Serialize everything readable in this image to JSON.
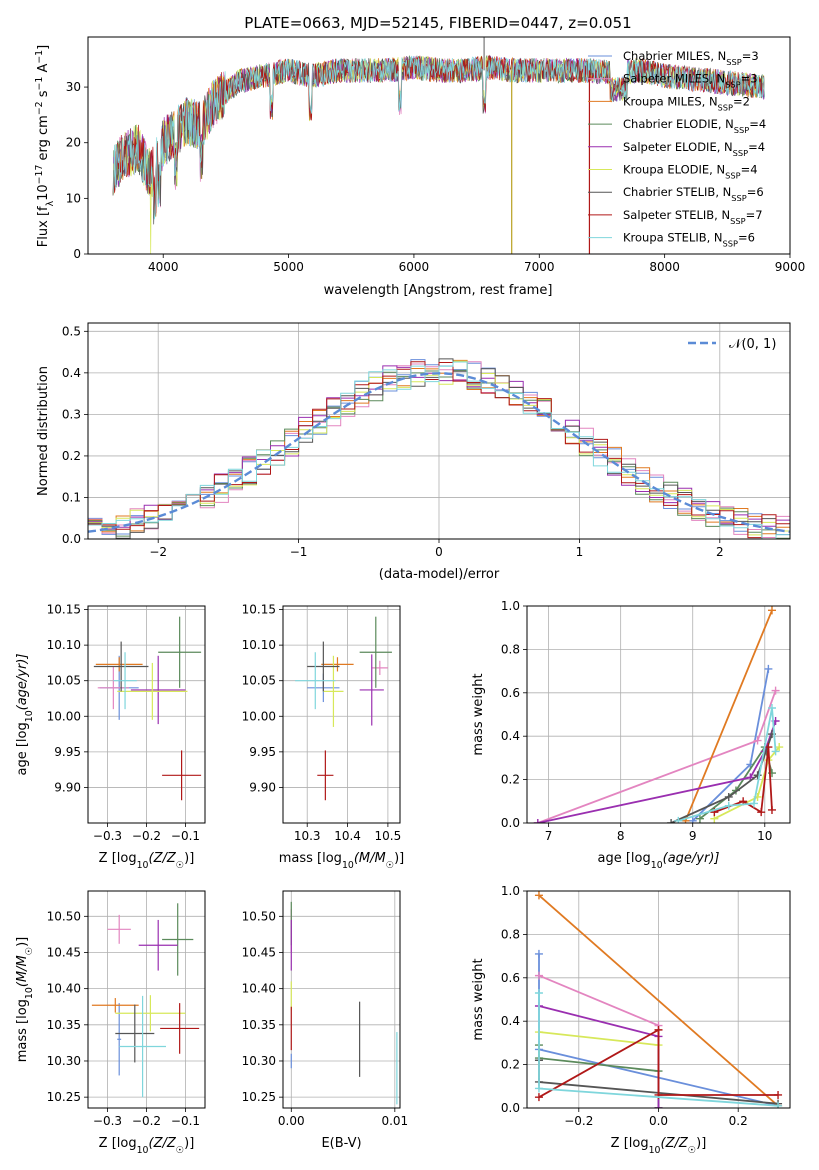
{
  "colors": {
    "chabrier_miles": "#6a8fdb",
    "salpeter_miles": "#e385c0",
    "kroupa_miles": "#e07a22",
    "chabrier_elodie": "#5b8a5b",
    "salpeter_elodie": "#9a2fb0",
    "kroupa_elodie": "#d7e85a",
    "chabrier_stelib": "#555555",
    "salpeter_stelib": "#b01818",
    "kroupa_stelib": "#7fd6dc",
    "normal_curve": "#5b8bd6",
    "grid": "#b0b0b0"
  },
  "chart_data": [
    {
      "type": "line",
      "title": "PLATE=0663, MJD=52145, FIBERID=0447, z=0.051",
      "xlabel": "wavelength [Angstrom, rest frame]",
      "ylabel_main": "Flux [f",
      "ylabel_sub": "λ",
      "ylabel_rest": "10",
      "ylabel_exp": "−17",
      "ylabel_unit": "erg cm",
      "ylabel_unit_exp": "−2",
      "ylabel_s": "s",
      "ylabel_s_exp": "−1",
      "ylabel_A": "A",
      "ylabel_A_exp": "−1",
      "ylabel_close": "]",
      "xlim": [
        3400,
        9000
      ],
      "ylim": [
        0,
        39
      ],
      "xticks": [
        "4000",
        "5000",
        "6000",
        "7000",
        "8000",
        "9000"
      ],
      "yticks": [
        "0",
        "10",
        "20",
        "30"
      ],
      "grid": false,
      "legend": [
        {
          "label": "Chabrier MILES, N",
          "sub": "SSP",
          "val": "=3"
        },
        {
          "label": "Salpeter MILES, N",
          "sub": "SSP",
          "val": "=3"
        },
        {
          "label": "Kroupa MILES, N",
          "sub": "SSP",
          "val": "=2"
        },
        {
          "label": "Chabrier ELODIE, N",
          "sub": "SSP",
          "val": "=4"
        },
        {
          "label": "Salpeter ELODIE, N",
          "sub": "SSP",
          "val": "=4"
        },
        {
          "label": "Kroupa ELODIE, N",
          "sub": "SSP",
          "val": "=4"
        },
        {
          "label": "Chabrier STELIB, N",
          "sub": "SSP",
          "val": "=6"
        },
        {
          "label": "Salpeter STELIB, N",
          "sub": "SSP",
          "val": "=7"
        },
        {
          "label": "Kroupa STELIB, N",
          "sub": "SSP",
          "val": "=6"
        }
      ],
      "legend_loc": "right",
      "continuum_x": [
        3600,
        3700,
        3800,
        3900,
        4000,
        4100,
        4200,
        4300,
        4400,
        4500,
        4600,
        4800,
        5000,
        5200,
        5400,
        5600,
        5800,
        6000,
        6200,
        6400,
        6600,
        6800,
        7000,
        7200,
        7400,
        7600,
        7800,
        8000,
        8200,
        8400,
        8600,
        8800
      ],
      "continuum_y": [
        15,
        18,
        19,
        14,
        20,
        22,
        24,
        23,
        27,
        29,
        31,
        32,
        33,
        32,
        33,
        33,
        33,
        33.5,
        33,
        33,
        33.5,
        33,
        33,
        33,
        33,
        32.5,
        33,
        32,
        31.5,
        31,
        30.5,
        30
      ]
    },
    {
      "type": "histogram",
      "xlabel": "(data-model)/error",
      "ylabel": "Normed distribution",
      "xlim": [
        -2.5,
        2.5
      ],
      "ylim": [
        0,
        0.52
      ],
      "xticks": [
        "−2",
        "−1",
        "0",
        "1",
        "2"
      ],
      "yticks": [
        "0.0",
        "0.1",
        "0.2",
        "0.3",
        "0.4",
        "0.5"
      ],
      "grid": true,
      "legend": [
        {
          "label": "𝒩(0, 1)"
        }
      ],
      "legend_loc": "top-right",
      "bin_width": 0.1
    },
    {
      "type": "scatter",
      "xlabel": "Z [log",
      "xlabel_sub": "10",
      "xlabel_rest": "(Z/Z",
      "xlabel_sub2": "☉",
      "xlabel_close": ")]",
      "ylabel": "age  [log",
      "ylabel_sub": "10",
      "ylabel_rest": "(age/yr)]",
      "xlim": [
        -0.35,
        -0.05
      ],
      "ylim": [
        9.85,
        10.155
      ],
      "xticks": [
        "−0.3",
        "−0.2",
        "−0.1"
      ],
      "yticks": [
        "9.90",
        "9.95",
        "10.00",
        "10.05",
        "10.10",
        "10.15"
      ],
      "points": [
        {
          "series": "chabrier_miles",
          "x": -0.27,
          "y": 10.04,
          "xerr": 0.05,
          "yerr": 0.045
        },
        {
          "series": "salpeter_miles",
          "x": -0.285,
          "y": 10.04,
          "xerr": 0.04,
          "yerr": 0.03
        },
        {
          "series": "kroupa_miles",
          "x": -0.27,
          "y": 10.073,
          "xerr": 0.06,
          "yerr": 0.01
        },
        {
          "series": "chabrier_elodie",
          "x": -0.115,
          "y": 10.09,
          "xerr": 0.055,
          "yerr": 0.05
        },
        {
          "series": "salpeter_elodie",
          "x": -0.17,
          "y": 10.037,
          "xerr": 0.07,
          "yerr": 0.048
        },
        {
          "series": "kroupa_elodie",
          "x": -0.185,
          "y": 10.035,
          "xerr": 0.09,
          "yerr": 0.04
        },
        {
          "series": "chabrier_stelib",
          "x": -0.265,
          "y": 10.07,
          "xerr": 0.07,
          "yerr": 0.035
        },
        {
          "series": "salpeter_stelib",
          "x": -0.11,
          "y": 9.917,
          "xerr": 0.05,
          "yerr": 0.035
        },
        {
          "series": "kroupa_stelib",
          "x": -0.255,
          "y": 10.05,
          "xerr": 0.03,
          "yerr": 0.04
        }
      ]
    },
    {
      "type": "scatter",
      "xlabel": "mass [log",
      "xlabel_sub": "10",
      "xlabel_rest": "(M/M",
      "xlabel_sub2": "☉",
      "xlabel_close": ")]",
      "xlim": [
        10.24,
        10.53
      ],
      "ylim": [
        9.85,
        10.155
      ],
      "xticks": [
        "10.3",
        "10.4",
        "10.5"
      ],
      "yticks": [
        "9.90",
        "9.95",
        "10.00",
        "10.05",
        "10.10",
        "10.15"
      ],
      "points": [
        {
          "series": "chabrier_miles",
          "x": 10.34,
          "y": 10.04,
          "xerr": 0.04,
          "yerr": 0.02
        },
        {
          "series": "salpeter_miles",
          "x": 10.48,
          "y": 10.068,
          "xerr": 0.02,
          "yerr": 0.01
        },
        {
          "series": "kroupa_miles",
          "x": 10.375,
          "y": 10.073,
          "xerr": 0.04,
          "yerr": 0.01
        },
        {
          "series": "chabrier_elodie",
          "x": 10.47,
          "y": 10.09,
          "xerr": 0.04,
          "yerr": 0.05
        },
        {
          "series": "salpeter_elodie",
          "x": 10.46,
          "y": 10.037,
          "xerr": 0.03,
          "yerr": 0.05
        },
        {
          "series": "kroupa_elodie",
          "x": 10.365,
          "y": 10.035,
          "xerr": 0.025,
          "yerr": 0.05
        },
        {
          "series": "chabrier_stelib",
          "x": 10.34,
          "y": 10.07,
          "xerr": 0.04,
          "yerr": 0.035
        },
        {
          "series": "salpeter_stelib",
          "x": 10.345,
          "y": 9.917,
          "xerr": 0.02,
          "yerr": 0.035
        },
        {
          "series": "kroupa_stelib",
          "x": 10.32,
          "y": 10.05,
          "xerr": 0.05,
          "yerr": 0.04
        }
      ]
    },
    {
      "type": "line",
      "xlabel": "age  [log",
      "xlabel_sub": "10",
      "xlabel_rest": "(age/yr)]",
      "ylabel": "mass weight",
      "xlim": [
        6.7,
        10.35
      ],
      "ylim": [
        0,
        1
      ],
      "xticks": [
        "7",
        "8",
        "9",
        "10"
      ],
      "yticks": [
        "0.0",
        "0.2",
        "0.4",
        "0.6",
        "0.8",
        "1.0"
      ],
      "grid": true,
      "series": [
        {
          "key": "chabrier_miles",
          "x": [
            9.0,
            9.8,
            10.05
          ],
          "y": [
            0.01,
            0.27,
            0.71
          ]
        },
        {
          "key": "salpeter_miles",
          "x": [
            6.85,
            9.9,
            10.15
          ],
          "y": [
            0.0,
            0.38,
            0.61
          ]
        },
        {
          "key": "kroupa_miles",
          "x": [
            8.9,
            10.1
          ],
          "y": [
            0.01,
            0.98
          ]
        },
        {
          "key": "chabrier_elodie",
          "x": [
            9.1,
            9.6,
            10.0,
            10.1
          ],
          "y": [
            0.02,
            0.15,
            0.35,
            0.23
          ]
        },
        {
          "key": "salpeter_elodie",
          "x": [
            6.85,
            9.8,
            10.0,
            10.15
          ],
          "y": [
            0.0,
            0.21,
            0.33,
            0.47
          ]
        },
        {
          "key": "kroupa_elodie",
          "x": [
            9.3,
            9.9,
            10.05,
            10.2
          ],
          "y": [
            0.02,
            0.12,
            0.29,
            0.35
          ]
        },
        {
          "key": "chabrier_stelib",
          "x": [
            8.7,
            9.5,
            9.9,
            10.1
          ],
          "y": [
            0.0,
            0.12,
            0.22,
            0.41
          ]
        },
        {
          "key": "salpeter_stelib",
          "x": [
            9.3,
            9.7,
            9.95,
            10.05,
            10.1
          ],
          "y": [
            0.05,
            0.1,
            0.05,
            0.35,
            0.06
          ]
        },
        {
          "key": "kroupa_stelib",
          "x": [
            8.8,
            9.5,
            9.85,
            10.1,
            10.15
          ],
          "y": [
            0.01,
            0.08,
            0.09,
            0.53,
            0.33
          ]
        }
      ]
    },
    {
      "type": "scatter",
      "xlabel": "Z [log",
      "xlabel_sub": "10",
      "xlabel_rest": "(Z/Z",
      "xlabel_sub2": "☉",
      "xlabel_close": ")]",
      "ylabel": "mass [log",
      "ylabel_sub": "10",
      "ylabel_rest": "(M/M",
      "ylabel_sub2": "☉",
      "ylabel_close": ")]",
      "xlim": [
        -0.35,
        -0.05
      ],
      "ylim": [
        10.235,
        10.535
      ],
      "xticks": [
        "−0.3",
        "−0.2",
        "−0.1"
      ],
      "yticks": [
        "10.25",
        "10.30",
        "10.35",
        "10.40",
        "10.45",
        "10.50"
      ],
      "points": [
        {
          "series": "chabrier_miles",
          "x": -0.27,
          "y": 10.33,
          "xerr": 0.005,
          "yerr": 0.05
        },
        {
          "series": "salpeter_miles",
          "x": -0.27,
          "y": 10.482,
          "xerr": 0.03,
          "yerr": 0.02
        },
        {
          "series": "kroupa_miles",
          "x": -0.28,
          "y": 10.377,
          "xerr": 0.06,
          "yerr": 0.01
        },
        {
          "series": "chabrier_elodie",
          "x": -0.12,
          "y": 10.468,
          "xerr": 0.04,
          "yerr": 0.05
        },
        {
          "series": "salpeter_elodie",
          "x": -0.17,
          "y": 10.46,
          "xerr": 0.05,
          "yerr": 0.035
        },
        {
          "series": "kroupa_elodie",
          "x": -0.19,
          "y": 10.366,
          "xerr": 0.09,
          "yerr": 0.025
        },
        {
          "series": "chabrier_stelib",
          "x": -0.23,
          "y": 10.338,
          "xerr": 0.05,
          "yerr": 0.04
        },
        {
          "series": "salpeter_stelib",
          "x": -0.115,
          "y": 10.345,
          "xerr": 0.05,
          "yerr": 0.035
        },
        {
          "series": "kroupa_stelib",
          "x": -0.21,
          "y": 10.32,
          "xerr": 0.06,
          "yerr": 0.07
        }
      ]
    },
    {
      "type": "scatter",
      "xlabel": "E(B-V)",
      "xlim": [
        -0.0008,
        0.0105
      ],
      "ylim": [
        10.235,
        10.535
      ],
      "xticks": [
        "0.00",
        "0.01"
      ],
      "yticks": [
        "10.25",
        "10.30",
        "10.35",
        "10.40",
        "10.45",
        "10.50"
      ],
      "points": [
        {
          "series": "chabrier_miles",
          "x": 0.0,
          "y": 10.3,
          "xerr": 0.0,
          "yerr": 0.01
        },
        {
          "series": "salpeter_miles",
          "x": 0.0,
          "y": 10.48,
          "xerr": 0.0,
          "yerr": 0.03
        },
        {
          "series": "chabrier_elodie",
          "x": 0.0,
          "y": 10.49,
          "xerr": 0.0,
          "yerr": 0.03
        },
        {
          "series": "salpeter_elodie",
          "x": 0.0,
          "y": 10.46,
          "xerr": 0.0,
          "yerr": 0.035
        },
        {
          "series": "kroupa_elodie",
          "x": 0.0,
          "y": 10.39,
          "xerr": 0.0,
          "yerr": 0.02
        },
        {
          "series": "salpeter_stelib",
          "x": 0.0,
          "y": 10.345,
          "xerr": 0.0,
          "yerr": 0.03
        },
        {
          "series": "chabrier_stelib",
          "x": 0.0066,
          "y": 10.33,
          "xerr": 0.0,
          "yerr": 0.052
        },
        {
          "series": "kroupa_stelib",
          "x": 0.0102,
          "y": 10.29,
          "xerr": 0.0,
          "yerr": 0.05
        }
      ]
    },
    {
      "type": "line",
      "xlabel": "Z [log",
      "xlabel_sub": "10",
      "xlabel_rest": "(Z/Z",
      "xlabel_sub2": "☉",
      "xlabel_close": ")]",
      "ylabel": "mass weight",
      "xlim": [
        -0.33,
        0.33
      ],
      "ylim": [
        0,
        1
      ],
      "xticks": [
        "−0.2",
        "0.0",
        "0.2"
      ],
      "yticks": [
        "0.0",
        "0.2",
        "0.4",
        "0.6",
        "0.8",
        "1.0"
      ],
      "grid": true,
      "series": [
        {
          "key": "chabrier_miles",
          "x": [
            -0.3,
            -0.3,
            0.3
          ],
          "y": [
            0.71,
            0.27,
            0.01
          ]
        },
        {
          "key": "salpeter_miles",
          "x": [
            -0.3,
            0.0,
            0.0
          ],
          "y": [
            0.61,
            0.38,
            0.0
          ]
        },
        {
          "key": "kroupa_miles",
          "x": [
            -0.3,
            0.3
          ],
          "y": [
            0.98,
            0.01
          ]
        },
        {
          "key": "chabrier_elodie",
          "x": [
            -0.3,
            -0.3,
            0.0,
            0.0
          ],
          "y": [
            0.29,
            0.23,
            0.17,
            0.0
          ]
        },
        {
          "key": "salpeter_elodie",
          "x": [
            -0.3,
            0.0,
            0.0
          ],
          "y": [
            0.47,
            0.33,
            0.0
          ]
        },
        {
          "key": "kroupa_elodie",
          "x": [
            -0.3,
            0.0
          ],
          "y": [
            0.35,
            0.29
          ]
        },
        {
          "key": "chabrier_stelib",
          "x": [
            -0.3,
            -0.3,
            0.3
          ],
          "y": [
            0.22,
            0.12,
            0.02
          ]
        },
        {
          "key": "salpeter_stelib",
          "x": [
            -0.3,
            0.0,
            0.0,
            0.3
          ],
          "y": [
            0.05,
            0.36,
            0.06,
            0.06
          ]
        },
        {
          "key": "kroupa_stelib",
          "x": [
            -0.3,
            -0.3,
            0.3
          ],
          "y": [
            0.53,
            0.09,
            0.01
          ]
        }
      ]
    }
  ]
}
